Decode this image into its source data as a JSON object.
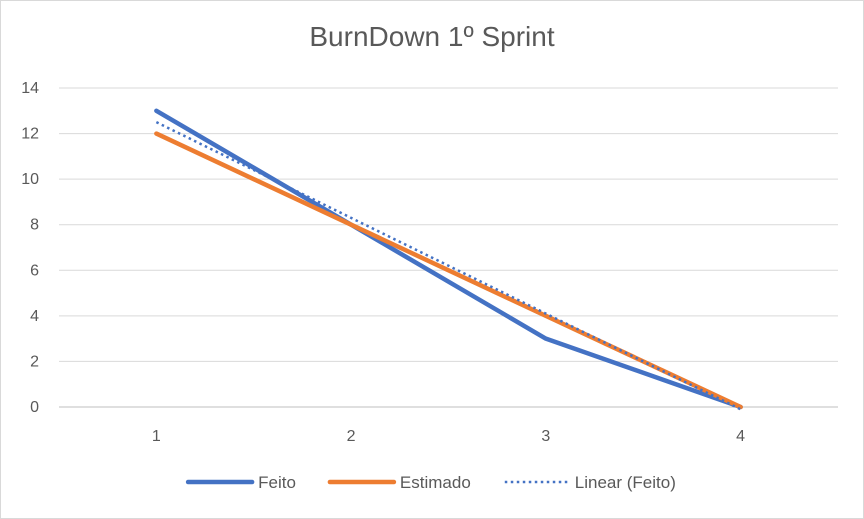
{
  "chart_data": {
    "type": "line",
    "title": "BurnDown 1º Sprint",
    "xlabel": "",
    "ylabel": "",
    "categories": [
      "1",
      "2",
      "3",
      "4"
    ],
    "ylim": [
      0,
      14
    ],
    "y_ticks": [
      "0",
      "2",
      "4",
      "6",
      "8",
      "10",
      "12",
      "14"
    ],
    "grid": "horizontal",
    "legend_position": "bottom",
    "series": [
      {
        "name": "Feito",
        "values": [
          13,
          8,
          3,
          0
        ],
        "color": "#4472C4",
        "style": "solid"
      },
      {
        "name": "Estimado",
        "values": [
          12,
          8,
          4,
          0
        ],
        "color": "#ED7D31",
        "style": "solid"
      },
      {
        "name": "Linear (Feito)",
        "values": [
          12.5,
          8.3,
          4.1,
          -0.1
        ],
        "color": "#4472C4",
        "style": "dotted",
        "trendline_of": "Feito"
      }
    ]
  }
}
